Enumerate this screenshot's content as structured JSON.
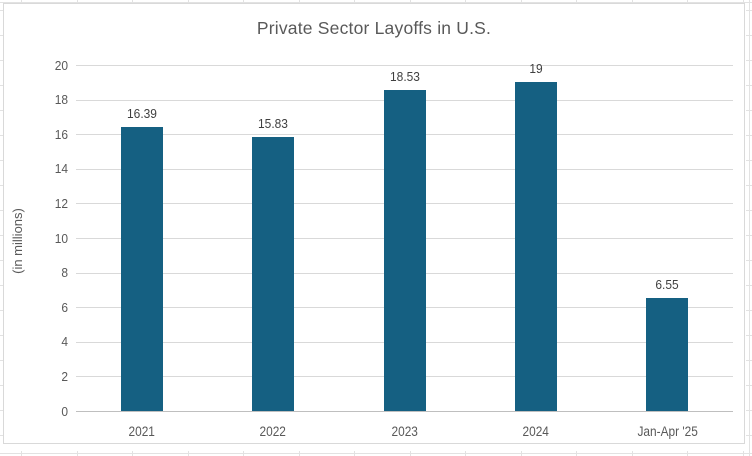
{
  "chart_data": {
    "type": "bar",
    "title": "Private Sector Layoffs in U.S.",
    "xlabel": "",
    "ylabel": "(in millions)",
    "categories": [
      "2021",
      "2022",
      "2023",
      "2024",
      "Jan-Apr '25"
    ],
    "values": [
      16.39,
      15.83,
      18.53,
      19,
      6.55
    ],
    "data_labels": [
      "16.39",
      "15.83",
      "18.53",
      "19",
      "6.55"
    ],
    "y_ticks": [
      0,
      2,
      4,
      6,
      8,
      10,
      12,
      14,
      16,
      18,
      20
    ],
    "ylim": [
      0,
      20
    ],
    "grid": true,
    "legend_position": "none",
    "bar_color": "#156082",
    "gridline_color": "#d9d9d9",
    "axis_line_color": "#bfbfbf",
    "axis_text_color": "#595959",
    "data_label_color": "#404040",
    "title_color": "#595959",
    "chart_border_color": "#d9d9d9",
    "background_color": "#ffffff"
  }
}
